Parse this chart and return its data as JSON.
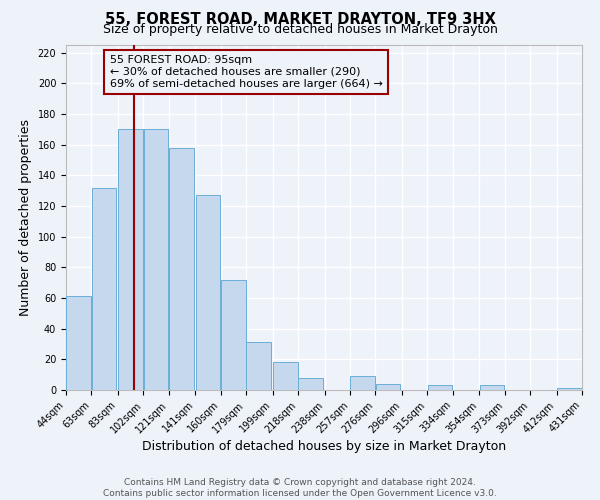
{
  "title": "55, FOREST ROAD, MARKET DRAYTON, TF9 3HX",
  "subtitle": "Size of property relative to detached houses in Market Drayton",
  "xlabel": "Distribution of detached houses by size in Market Drayton",
  "ylabel": "Number of detached properties",
  "bar_left_edges": [
    44,
    63,
    83,
    102,
    121,
    141,
    160,
    179,
    199,
    218,
    238,
    257,
    276,
    296,
    315,
    334,
    354,
    373,
    392,
    412
  ],
  "bar_widths": [
    19,
    19,
    19,
    19,
    19,
    19,
    19,
    19,
    19,
    19,
    19,
    19,
    19,
    19,
    19,
    19,
    19,
    19,
    19,
    19
  ],
  "bar_heights": [
    61,
    132,
    170,
    170,
    158,
    127,
    72,
    31,
    18,
    8,
    0,
    9,
    4,
    0,
    3,
    0,
    3,
    0,
    0,
    1
  ],
  "bar_color": "#c5d8ee",
  "bar_edge_color": "#6aaed6",
  "tick_labels": [
    "44sqm",
    "63sqm",
    "83sqm",
    "102sqm",
    "121sqm",
    "141sqm",
    "160sqm",
    "179sqm",
    "199sqm",
    "218sqm",
    "238sqm",
    "257sqm",
    "276sqm",
    "296sqm",
    "315sqm",
    "334sqm",
    "354sqm",
    "373sqm",
    "392sqm",
    "412sqm",
    "431sqm"
  ],
  "vline_x": 95,
  "vline_color": "#990000",
  "ylim": [
    0,
    225
  ],
  "yticks": [
    0,
    20,
    40,
    60,
    80,
    100,
    120,
    140,
    160,
    180,
    200,
    220
  ],
  "annotation_line1": "55 FOREST ROAD: 95sqm",
  "annotation_line2": "← 30% of detached houses are smaller (290)",
  "annotation_line3": "69% of semi-detached houses are larger (664) →",
  "footer_line1": "Contains HM Land Registry data © Crown copyright and database right 2024.",
  "footer_line2": "Contains public sector information licensed under the Open Government Licence v3.0.",
  "bg_color": "#eef2f9",
  "grid_color": "#ffffff",
  "title_fontsize": 10.5,
  "subtitle_fontsize": 9,
  "axis_label_fontsize": 9,
  "tick_fontsize": 7,
  "annotation_fontsize": 8,
  "footer_fontsize": 6.5
}
